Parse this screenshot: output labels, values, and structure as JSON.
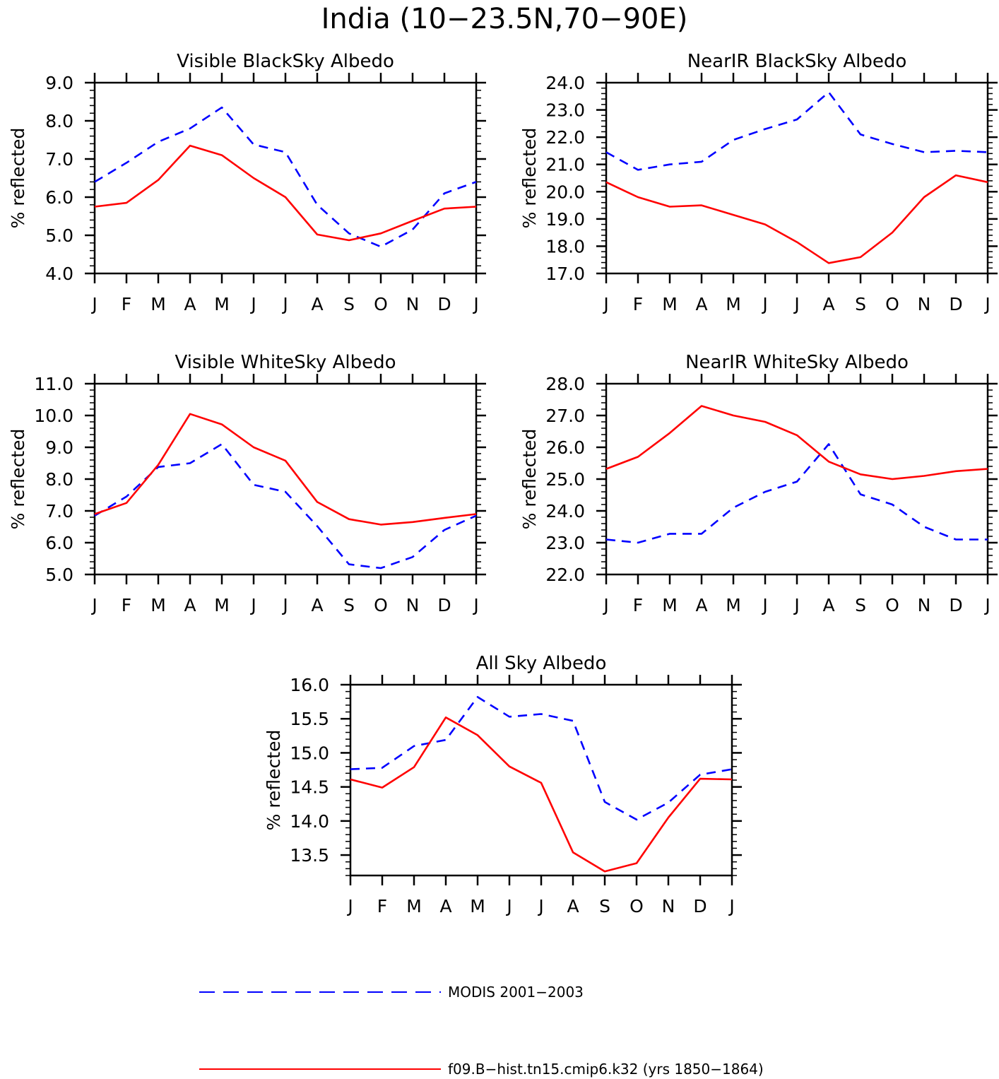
{
  "figure": {
    "title": "India (10−23.5N,70−90E)"
  },
  "legend": {
    "items": [
      {
        "label": "MODIS 2001−2003",
        "color": "#0000ff",
        "style": "dashed"
      },
      {
        "label": "f09.B−hist.tn15.cmip6.k32 (yrs 1850−1864)",
        "color": "#ff0000",
        "style": "solid"
      }
    ],
    "placement": "bottom-center"
  },
  "chart_data": [
    {
      "type": "line",
      "title": "Visible BlackSky Albedo",
      "ylabel": "% reflected",
      "xlabel": "",
      "categories": [
        "J",
        "F",
        "M",
        "A",
        "M",
        "J",
        "J",
        "A",
        "S",
        "O",
        "N",
        "D",
        "J"
      ],
      "ylim": [
        4.0,
        9.0
      ],
      "yticks": [
        "4.0",
        "5.0",
        "6.0",
        "7.0",
        "8.0",
        "9.0"
      ],
      "series": [
        {
          "name": "MODIS 2001−2003",
          "color": "#0000ff",
          "style": "dashed",
          "values": [
            6.4,
            6.9,
            7.45,
            7.8,
            8.35,
            7.38,
            7.18,
            5.8,
            5.05,
            4.7,
            5.15,
            6.1,
            6.4
          ]
        },
        {
          "name": "f09.B−hist.tn15.cmip6.k32 (yrs 1850−1864)",
          "color": "#ff0000",
          "style": "solid",
          "values": [
            5.75,
            5.85,
            6.45,
            7.35,
            7.1,
            6.5,
            6.0,
            5.02,
            4.87,
            5.05,
            5.38,
            5.7,
            5.75
          ]
        }
      ]
    },
    {
      "type": "line",
      "title": "NearIR BlackSky Albedo",
      "ylabel": "% reflected",
      "xlabel": "",
      "categories": [
        "J",
        "F",
        "M",
        "A",
        "M",
        "J",
        "J",
        "A",
        "S",
        "O",
        "N",
        "D",
        "J"
      ],
      "ylim": [
        17.0,
        24.0
      ],
      "yticks": [
        "17.0",
        "18.0",
        "19.0",
        "20.0",
        "21.0",
        "22.0",
        "23.0",
        "24.0"
      ],
      "series": [
        {
          "name": "MODIS 2001−2003",
          "color": "#0000ff",
          "style": "dashed",
          "values": [
            21.45,
            20.8,
            21.0,
            21.1,
            21.9,
            22.3,
            22.65,
            23.65,
            22.1,
            21.75,
            21.45,
            21.5,
            21.45
          ]
        },
        {
          "name": "f09.B−hist.tn15.cmip6.k32 (yrs 1850−1864)",
          "color": "#ff0000",
          "style": "solid",
          "values": [
            20.35,
            19.8,
            19.45,
            19.5,
            19.15,
            18.8,
            18.15,
            17.38,
            17.6,
            18.5,
            19.8,
            20.6,
            20.35
          ]
        }
      ]
    },
    {
      "type": "line",
      "title": "Visible WhiteSky Albedo",
      "ylabel": "% reflected",
      "xlabel": "",
      "categories": [
        "J",
        "F",
        "M",
        "A",
        "M",
        "J",
        "J",
        "A",
        "S",
        "O",
        "N",
        "D",
        "J"
      ],
      "ylim": [
        5.0,
        11.0
      ],
      "yticks": [
        "5.0",
        "6.0",
        "7.0",
        "8.0",
        "9.0",
        "10.0",
        "11.0"
      ],
      "series": [
        {
          "name": "MODIS 2001−2003",
          "color": "#0000ff",
          "style": "dashed",
          "values": [
            6.85,
            7.45,
            8.38,
            8.5,
            9.1,
            7.82,
            7.6,
            6.52,
            5.32,
            5.2,
            5.55,
            6.4,
            6.85
          ]
        },
        {
          "name": "f09.B−hist.tn15.cmip6.k32 (yrs 1850−1864)",
          "color": "#ff0000",
          "style": "solid",
          "values": [
            6.9,
            7.25,
            8.45,
            10.05,
            9.72,
            9.0,
            8.58,
            7.28,
            6.74,
            6.57,
            6.65,
            6.78,
            6.9
          ]
        }
      ]
    },
    {
      "type": "line",
      "title": "NearIR WhiteSky Albedo",
      "ylabel": "% reflected",
      "xlabel": "",
      "categories": [
        "J",
        "F",
        "M",
        "A",
        "M",
        "J",
        "J",
        "A",
        "S",
        "O",
        "N",
        "D",
        "J"
      ],
      "ylim": [
        22.0,
        28.0
      ],
      "yticks": [
        "22.0",
        "23.0",
        "24.0",
        "25.0",
        "26.0",
        "27.0",
        "28.0"
      ],
      "series": [
        {
          "name": "MODIS 2001−2003",
          "color": "#0000ff",
          "style": "dashed",
          "values": [
            23.1,
            23.0,
            23.28,
            23.28,
            24.1,
            24.6,
            24.92,
            26.1,
            24.52,
            24.2,
            23.5,
            23.1,
            23.1
          ]
        },
        {
          "name": "f09.B−hist.tn15.cmip6.k32 (yrs 1850−1864)",
          "color": "#ff0000",
          "style": "solid",
          "values": [
            25.32,
            25.7,
            26.45,
            27.3,
            27.0,
            26.8,
            26.38,
            25.55,
            25.15,
            25.0,
            25.1,
            25.25,
            25.32
          ]
        }
      ]
    },
    {
      "type": "line",
      "title": "All Sky Albedo",
      "ylabel": "% reflected",
      "xlabel": "",
      "categories": [
        "J",
        "F",
        "M",
        "A",
        "M",
        "J",
        "J",
        "A",
        "S",
        "O",
        "N",
        "D",
        "J"
      ],
      "ylim": [
        13.2,
        16.0
      ],
      "yticks": [
        "13.5",
        "14.0",
        "14.5",
        "15.0",
        "15.5",
        "16.0"
      ],
      "series": [
        {
          "name": "MODIS 2001−2003",
          "color": "#0000ff",
          "style": "dashed",
          "values": [
            14.76,
            14.78,
            15.1,
            15.19,
            15.82,
            15.53,
            15.57,
            15.47,
            14.28,
            14.02,
            14.27,
            14.68,
            14.76
          ]
        },
        {
          "name": "f09.B−hist.tn15.cmip6.k32 (yrs 1850−1864)",
          "color": "#ff0000",
          "style": "solid",
          "values": [
            14.61,
            14.49,
            14.79,
            15.52,
            15.26,
            14.8,
            14.56,
            13.54,
            13.26,
            13.38,
            14.05,
            14.62,
            14.61
          ]
        }
      ]
    }
  ]
}
